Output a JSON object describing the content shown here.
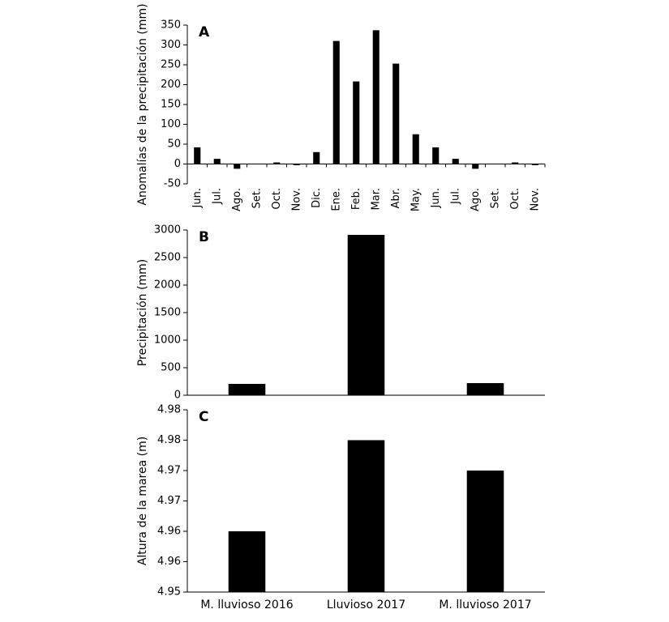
{
  "chart_data": [
    {
      "type": "bar",
      "panel_label": "A",
      "y_label": "Anomalías de la precipitación (mm)",
      "categories": [
        "Jun.",
        "Jul.",
        "Ago.",
        "Set.",
        "Oct.",
        "Nov.",
        "Dic.",
        "Ene.",
        "Feb.",
        "Mar.",
        "Abr.",
        "May.",
        "Jun.",
        "Jul.",
        "Ago.",
        "Set.",
        "Oct.",
        "Nov."
      ],
      "values": [
        42,
        13,
        -12,
        0,
        4,
        -3,
        30,
        310,
        208,
        337,
        253,
        75,
        42,
        13,
        -12,
        0,
        4,
        -3
      ],
      "color": "#000000",
      "ylim": [
        -50,
        350
      ],
      "yticks": [
        -50,
        0,
        50,
        100,
        150,
        200,
        250,
        300,
        350
      ]
    },
    {
      "type": "bar",
      "panel_label": "B",
      "y_label": "Precipitación (mm)",
      "values": [
        206,
        2912,
        220
      ],
      "color": "#000000",
      "ylim": [
        0,
        3000
      ],
      "yticks": [
        0,
        500,
        1000,
        1500,
        2000,
        2500,
        3000
      ]
    },
    {
      "type": "bar",
      "panel_label": "C",
      "y_label": "Altura de la marea (m)",
      "categories": [
        "M. lluvioso 2016",
        "Lluvioso 2017",
        "M. lluvioso 2017"
      ],
      "values": [
        4.96,
        4.975,
        4.97
      ],
      "color": "#000000",
      "ylim": [
        4.95,
        4.98
      ],
      "yticks": [
        4.95,
        {
          "value": 4.955,
          "label": "4.96"
        },
        4.96,
        {
          "value": 4.965,
          "label": "4.97"
        },
        4.97,
        {
          "value": 4.975,
          "label": "4.98"
        },
        4.98
      ]
    }
  ]
}
